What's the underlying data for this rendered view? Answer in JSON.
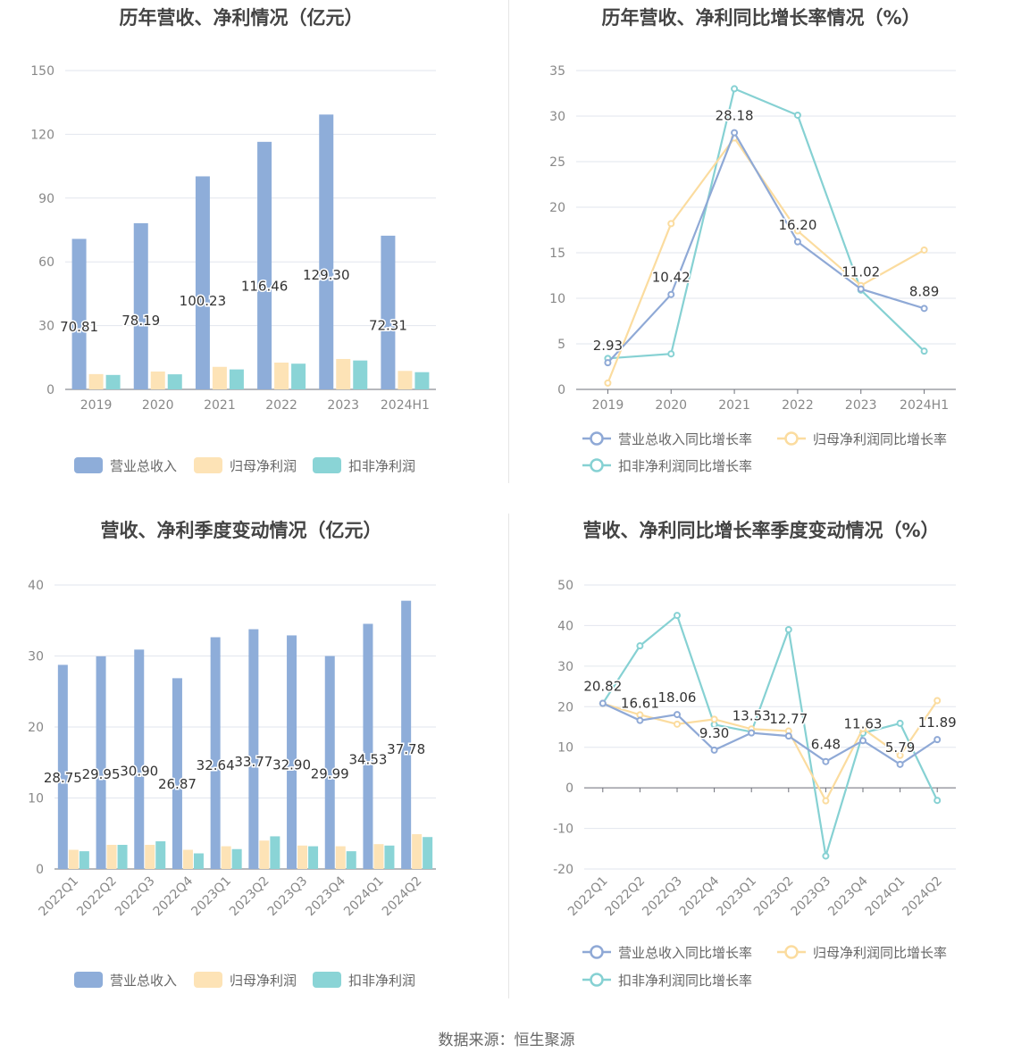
{
  "colors": {
    "revenue": "#8eadd9",
    "net_profit": "#fde3b6",
    "deducted_profit": "#8ad4d6",
    "revenue_line": "#8fa9d6",
    "net_profit_line": "#fbdc9f",
    "deducted_line": "#86d1d3",
    "grid": "#e2e6ee",
    "axis_text": "#888888",
    "title": "#444444"
  },
  "footer": {
    "source": "数据来源：恒生聚源"
  },
  "chart_data": [
    {
      "type": "bar",
      "title": "历年营收、净利情况（亿元）",
      "categories": [
        "2019",
        "2020",
        "2021",
        "2022",
        "2023",
        "2024H1"
      ],
      "ylim": [
        0,
        150
      ],
      "yticks": [
        0,
        30,
        60,
        90,
        120,
        150
      ],
      "series": [
        {
          "name": "营业总收入",
          "values": [
            70.81,
            78.19,
            100.23,
            116.46,
            129.3,
            72.31
          ],
          "labels": [
            "70.81",
            "78.19",
            "100.23",
            "116.46",
            "129.30",
            "72.31"
          ]
        },
        {
          "name": "归母净利润",
          "values": [
            7.2,
            8.4,
            10.6,
            12.6,
            14.3,
            8.7
          ]
        },
        {
          "name": "扣非净利润",
          "values": [
            6.8,
            7.1,
            9.4,
            12.1,
            13.6,
            8.1
          ]
        }
      ],
      "grid": true,
      "legend": "bottom"
    },
    {
      "type": "line",
      "title": "历年营收、净利同比增长率情况（%）",
      "categories": [
        "2019",
        "2020",
        "2021",
        "2022",
        "2023",
        "2024H1"
      ],
      "ylim": [
        0,
        35
      ],
      "yticks": [
        0,
        5,
        10,
        15,
        20,
        25,
        30,
        35
      ],
      "series": [
        {
          "name": "营业总收入同比增长率",
          "values": [
            2.93,
            10.42,
            28.18,
            16.2,
            11.02,
            8.89
          ],
          "labels": [
            "2.93",
            "10.42",
            "28.18",
            "16.20",
            "11.02",
            "8.89"
          ]
        },
        {
          "name": "归母净利润同比增长率",
          "values": [
            0.7,
            18.2,
            27.6,
            17.4,
            11.4,
            15.3
          ]
        },
        {
          "name": "扣非净利润同比增长率",
          "values": [
            3.4,
            3.9,
            33.0,
            30.1,
            10.9,
            4.2
          ]
        }
      ],
      "grid": true,
      "legend": "bottom"
    },
    {
      "type": "bar",
      "title": "营收、净利季度变动情况（亿元）",
      "categories": [
        "2022Q1",
        "2022Q2",
        "2022Q3",
        "2022Q4",
        "2023Q1",
        "2023Q2",
        "2023Q3",
        "2023Q4",
        "2024Q1",
        "2024Q2"
      ],
      "ylim": [
        0,
        40
      ],
      "yticks": [
        0,
        10,
        20,
        30,
        40
      ],
      "series": [
        {
          "name": "营业总收入",
          "values": [
            28.75,
            29.95,
            30.9,
            26.87,
            32.64,
            33.77,
            32.9,
            29.99,
            34.53,
            37.78
          ],
          "labels": [
            "28.75",
            "29.95",
            "30.90",
            "26.87",
            "32.64",
            "33.77",
            "32.90",
            "29.99",
            "34.53",
            "37.78"
          ]
        },
        {
          "name": "归母净利润",
          "values": [
            2.7,
            3.4,
            3.4,
            2.7,
            3.2,
            4.0,
            3.3,
            3.2,
            3.5,
            4.9
          ]
        },
        {
          "name": "扣非净利润",
          "values": [
            2.5,
            3.4,
            3.9,
            2.2,
            2.8,
            4.6,
            3.2,
            2.5,
            3.3,
            4.5
          ]
        }
      ],
      "grid": true,
      "legend": "bottom"
    },
    {
      "type": "line",
      "title": "营收、净利同比增长率季度变动情况（%）",
      "categories": [
        "2022Q1",
        "2022Q2",
        "2022Q3",
        "2022Q4",
        "2023Q1",
        "2023Q2",
        "2023Q3",
        "2023Q4",
        "2024Q1",
        "2024Q2"
      ],
      "ylim": [
        -20,
        50
      ],
      "yticks": [
        -20,
        -10,
        0,
        10,
        20,
        30,
        40,
        50
      ],
      "series": [
        {
          "name": "营业总收入同比增长率",
          "values": [
            20.82,
            16.61,
            18.06,
            9.3,
            13.53,
            12.77,
            6.48,
            11.63,
            5.79,
            11.89
          ],
          "labels": [
            "20.82",
            "16.61",
            "18.06",
            "9.30",
            "13.53",
            "12.77",
            "6.48",
            "11.63",
            "5.79",
            "11.89"
          ]
        },
        {
          "name": "归母净利润同比增长率",
          "values": [
            20.8,
            18.0,
            15.7,
            16.9,
            14.5,
            14.0,
            -3.2,
            14.6,
            8.0,
            21.5
          ]
        },
        {
          "name": "扣非净利润同比增长率",
          "values": [
            20.8,
            35.0,
            42.5,
            15.6,
            13.8,
            39.0,
            -16.8,
            13.5,
            15.9,
            -3.1
          ]
        }
      ],
      "grid": true,
      "legend": "bottom"
    }
  ]
}
